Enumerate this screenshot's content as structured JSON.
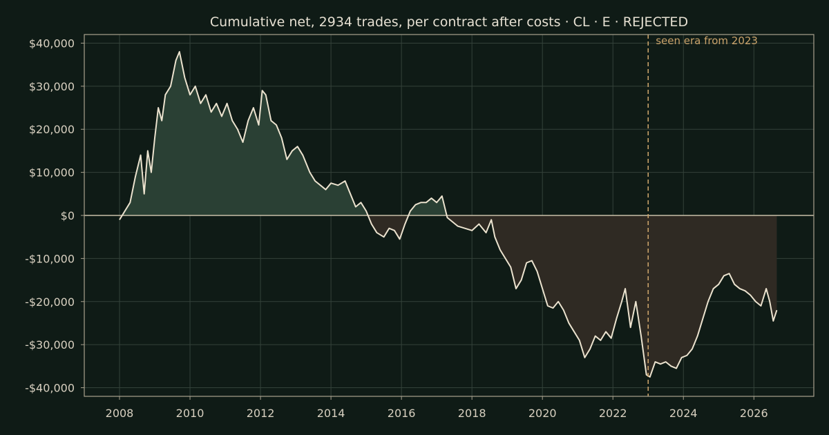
{
  "chart_data": {
    "type": "line",
    "title": "Cumulative net, 2934 trades, per contract after costs  ·  CL · E · REJECTED",
    "xlabel": "",
    "ylabel": "",
    "x_ticks": [
      "2008",
      "2010",
      "2012",
      "2014",
      "2016",
      "2018",
      "2020",
      "2022",
      "2024",
      "2026"
    ],
    "y_ticks": [
      "$40,000",
      "$30,000",
      "$20,000",
      "$10,000",
      "$0",
      "-$10,000",
      "-$20,000",
      "-$30,000",
      "-$40,000"
    ],
    "xlim": [
      2007.0,
      2027.7
    ],
    "ylim": [
      -42000,
      42000
    ],
    "grid": true,
    "colors": {
      "line": "#ece3cf",
      "positive_fill": "#2a4034",
      "negative_fill": "#2f2a23",
      "annotation": "#c9a26a",
      "zero_line": "#c9bfa8",
      "grid": "#34423a",
      "axes": "#a9a28f"
    },
    "annotation": {
      "x": 2023.0,
      "label": "seen era from 2023"
    },
    "series": [
      {
        "x": [
          2008.0,
          2008.15,
          2008.3,
          2008.45,
          2008.6,
          2008.7,
          2008.8,
          2008.9,
          2009.0,
          2009.1,
          2009.2,
          2009.3,
          2009.45,
          2009.6,
          2009.7,
          2009.85,
          2010.0,
          2010.15,
          2010.3,
          2010.45,
          2010.6,
          2010.75,
          2010.9,
          2011.05,
          2011.2,
          2011.35,
          2011.5,
          2011.65,
          2011.8,
          2011.95,
          2012.05,
          2012.15,
          2012.3,
          2012.45,
          2012.6,
          2012.75,
          2012.9,
          2013.05,
          2013.2,
          2013.4,
          2013.55,
          2013.7,
          2013.85,
          2014.0,
          2014.2,
          2014.4,
          2014.55,
          2014.7,
          2014.85,
          2015.0,
          2015.15,
          2015.3,
          2015.5,
          2015.65,
          2015.8,
          2015.95,
          2016.1,
          2016.25,
          2016.4,
          2016.55,
          2016.7,
          2016.85,
          2017.0,
          2017.15,
          2017.3,
          2017.45,
          2017.6,
          2017.8,
          2018.0,
          2018.2,
          2018.4,
          2018.55,
          2018.65,
          2018.8,
          2018.95,
          2019.1,
          2019.25,
          2019.4,
          2019.55,
          2019.7,
          2019.85,
          2020.0,
          2020.15,
          2020.3,
          2020.45,
          2020.6,
          2020.75,
          2020.9,
          2021.05,
          2021.2,
          2021.35,
          2021.5,
          2021.65,
          2021.8,
          2021.95,
          2022.1,
          2022.25,
          2022.35,
          2022.5,
          2022.65,
          2022.8,
          2022.95,
          2023.05,
          2023.2,
          2023.35,
          2023.5,
          2023.65,
          2023.8,
          2023.95,
          2024.1,
          2024.25,
          2024.4,
          2024.55,
          2024.7,
          2024.85,
          2025.0,
          2025.15,
          2025.3,
          2025.45,
          2025.6,
          2025.75,
          2025.9,
          2026.05,
          2026.2,
          2026.35,
          2026.45,
          2026.55,
          2026.65
        ],
        "values": [
          -1000,
          1000,
          3000,
          9000,
          14000,
          5000,
          15000,
          10000,
          18000,
          25000,
          22000,
          28000,
          30000,
          36000,
          38000,
          32000,
          28000,
          30000,
          26000,
          28000,
          24000,
          26000,
          23000,
          26000,
          22000,
          20000,
          17000,
          22000,
          25000,
          21000,
          29000,
          28000,
          22000,
          21000,
          18000,
          13000,
          15000,
          16000,
          14000,
          10000,
          8000,
          7000,
          6000,
          7500,
          7000,
          8000,
          5000,
          2000,
          3000,
          1000,
          -2000,
          -4000,
          -5000,
          -3000,
          -3500,
          -5500,
          -2000,
          1000,
          2500,
          3000,
          3000,
          4000,
          3000,
          4500,
          -500,
          -1500,
          -2500,
          -3000,
          -3500,
          -2000,
          -4000,
          -1000,
          -5000,
          -8000,
          -10000,
          -12000,
          -17000,
          -15000,
          -11000,
          -10500,
          -13000,
          -17000,
          -21000,
          -21500,
          -20000,
          -22000,
          -25000,
          -27000,
          -29000,
          -33000,
          -31000,
          -28000,
          -29000,
          -27000,
          -28500,
          -24000,
          -20000,
          -17000,
          -26000,
          -20000,
          -28000,
          -37000,
          -37500,
          -34000,
          -34500,
          -34000,
          -35000,
          -35500,
          -33000,
          -32500,
          -31000,
          -28000,
          -24000,
          -20000,
          -17000,
          -16000,
          -14000,
          -13500,
          -16000,
          -17000,
          -17500,
          -18500,
          -20000,
          -21000,
          -17000,
          -20000,
          -24500,
          -22000
        ]
      }
    ]
  }
}
